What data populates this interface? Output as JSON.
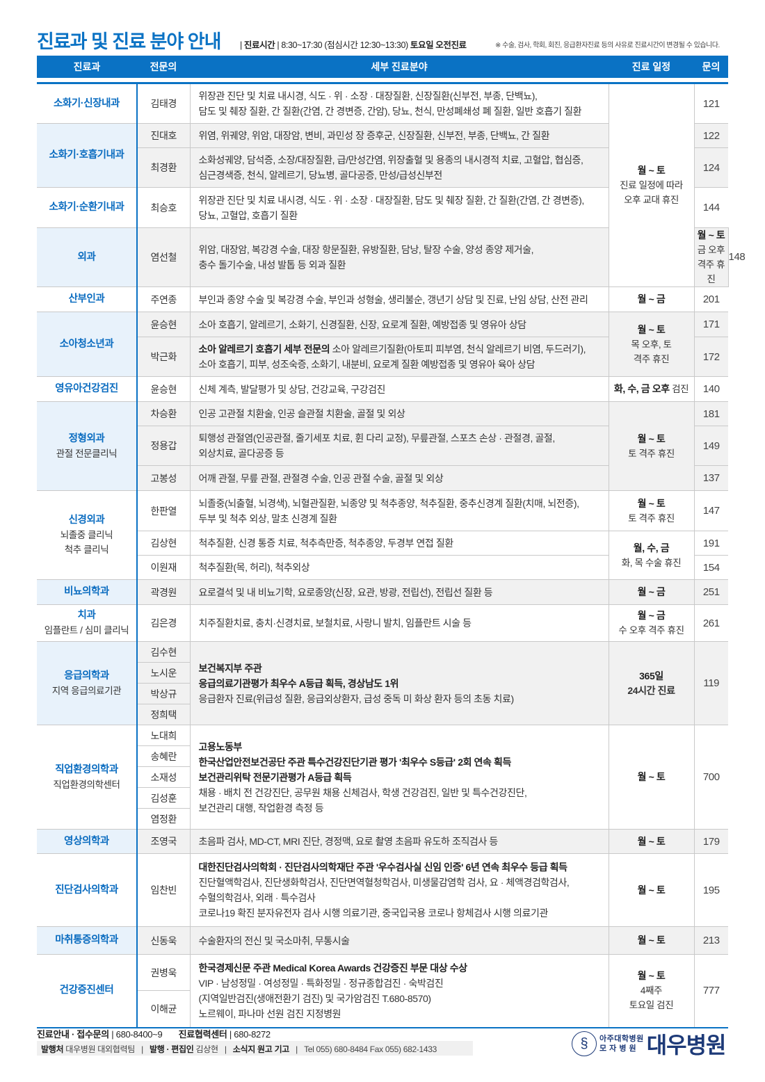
{
  "title": "진료과 및 진료 분야 안내",
  "hours": {
    "label": "진료시간",
    "value": "8:30~17:30",
    "lunch": "(점심시간 12:30~13:30)",
    "sat": "토요일 오전진료"
  },
  "notice": "※ 수술, 검사, 학회, 회진, 응급환자진료 등의 사유로 진료시간이 변경될 수 있습니다.",
  "headers": [
    "진료과",
    "전문의",
    "세부 진료분야",
    "진료 일정",
    "문의"
  ],
  "colors": {
    "accent": "#0a72c4",
    "dept_text": "#0a6cc0",
    "shade": "#f1f1f1",
    "dept_shade": "#e8f2fb"
  },
  "departments": [
    {
      "name": "소화기·신장내과",
      "doctors": [
        "김태경"
      ],
      "details": [
        {
          "lines": [
            "위장관 진단 및 치료 내시경, 식도 · 위 · 소장 · 대장질환, 신장질환(신부전, 부종, 단백뇨),",
            "담도 및 췌장 질환, 간 질환(간염, 간 경변증, 간암), 당뇨, 천식, 만성폐쇄성 폐 질환, 일반 호흡기 질환"
          ]
        }
      ],
      "phones": [
        "121"
      ],
      "schedules": [
        {
          "main": "월 ~ 토",
          "sub": [
            "진료 일정에 따라",
            "오후 교대 휴진"
          ]
        }
      ]
    },
    {
      "name": "소화기·호흡기내과",
      "doctors": [
        "진대호",
        "최경환"
      ],
      "details": [
        {
          "lines": [
            "위염, 위궤양, 위암, 대장암, 변비, 과민성 장 증후군, 신장질환, 신부전, 부종, 단백뇨, 간 질환"
          ]
        },
        {
          "lines": [
            "소화성궤양, 담석증, 소장/대장질환, 급/만성간염, 위장출혈 및 용종의 내시경적 치료, 고혈압, 협심증,",
            "심근경색증, 천식, 알레르기, 당뇨병, 골다공증, 만성/급성신부전"
          ]
        }
      ],
      "phones": [
        "122",
        "124"
      ]
    },
    {
      "name": "소화기·순환기내과",
      "doctors": [
        "최승호"
      ],
      "details": [
        {
          "lines": [
            "위장관 진단 및 치료 내시경, 식도 · 위 · 소장 · 대장질환, 담도 및 췌장 질환, 간 질환(간염, 간 경변증),",
            "당뇨, 고혈압, 호흡기 질환"
          ]
        }
      ],
      "phones": [
        "144"
      ]
    },
    {
      "name": "외과",
      "doctors": [
        "염선철"
      ],
      "details": [
        {
          "lines": [
            "위암, 대장암, 복강경 수술, 대장 항문질환, 유방질환, 담낭, 탈장 수술, 양성 종양 제거술,",
            "충수 돌기수술, 내성 발톱 등 외과 질환"
          ]
        }
      ],
      "phones": [
        "148"
      ],
      "schedules": [
        {
          "main": "월 ~ 토",
          "sub": [
            "금 오후 격주 휴진"
          ]
        }
      ]
    },
    {
      "name": "산부인과",
      "doctors": [
        "주연종"
      ],
      "details": [
        {
          "lines": [
            "부인과 종양 수술 및 복강경 수술, 부인과 성형술, 생리불순, 갱년기 상담 및 진료, 난임 상담, 산전 관리"
          ]
        }
      ],
      "phones": [
        "201"
      ],
      "schedules": [
        {
          "main": "월 ~ 금"
        }
      ]
    },
    {
      "name": "소아청소년과",
      "doctors": [
        "윤승현",
        "박근화"
      ],
      "details": [
        {
          "lines": [
            "소아 호흡기, 알레르기, 소화기, 신경질환, 신장, 요로계 질환, 예방접종 및 영유아 상담"
          ]
        },
        {
          "lead": "소아 알레르기 호흡기 세부 전문의",
          "lines": [
            " 소아 알레르기질환(아토피 피부염, 천식 알레르기 비염, 두드러기),",
            "소아 호흡기, 피부, 성조숙증, 소화기, 내분비, 요로계 질환 예방접종 및 영유아 육아 상담"
          ]
        }
      ],
      "phones": [
        "171",
        "172"
      ],
      "schedules": [
        {
          "main": "월 ~ 토",
          "sub": [
            "목 오후, 토",
            "격주 휴진"
          ]
        }
      ]
    },
    {
      "name": "영유아건강검진",
      "doctors": [
        "윤승현"
      ],
      "details": [
        {
          "lines": [
            "신체 계측, 발달평가 및 상담, 건강교육, 구강검진"
          ]
        }
      ],
      "phones": [
        "140"
      ],
      "schedules": [
        {
          "main": "화, 수, 금 오후",
          "sub": [
            " 검진"
          ]
        }
      ]
    },
    {
      "name": "정형외과",
      "sub": [
        "관절 전문클리닉"
      ],
      "doctors": [
        "차승환",
        "정용갑",
        "고봉성"
      ],
      "details": [
        {
          "lines": [
            "인공 고관절 치환술, 인공 슬관절 치환술, 골절 및 외상"
          ]
        },
        {
          "lines": [
            "퇴행성 관절염(인공관절, 줄기세포 치료, 휜 다리 교정), 무릎관절, 스포츠 손상 · 관절경, 골절,",
            "외상치료, 골다공증 등"
          ]
        },
        {
          "lines": [
            "어깨 관절, 무릎 관절, 관절경 수술, 인공 관절 수술, 골절 및 외상"
          ]
        }
      ],
      "phones": [
        "181",
        "149",
        "137"
      ],
      "schedules": [
        {
          "main": "월 ~ 토",
          "sub": [
            "토 격주 휴진"
          ]
        }
      ]
    },
    {
      "name": "신경외과",
      "sub": [
        "뇌졸중 클리닉",
        "척추 클리닉"
      ],
      "doctors": [
        "한판열",
        "김상현",
        "이원재"
      ],
      "details": [
        {
          "lines": [
            "뇌졸중(뇌출혈, 뇌경색), 뇌혈관질환, 뇌종양 및 척추종양, 척추질환, 중추신경계 질환(치매, 뇌전증),",
            "두부 및 척추 외상, 말초 신경계 질환"
          ]
        },
        {
          "lines": [
            "척추질환, 신경 통증 치료, 척추측만증, 척추종양, 두경부 연접 질환"
          ]
        },
        {
          "lines": [
            "척추질환(목, 허리), 척추외상"
          ]
        }
      ],
      "phones": [
        "147",
        "191",
        "154"
      ],
      "schedules": [
        {
          "main": "월 ~ 토",
          "sub": [
            "토 격주 휴진"
          ]
        },
        {
          "main": "월, 수, 금",
          "sub": [
            "화, 목 수술 휴진"
          ]
        }
      ]
    },
    {
      "name": "비뇨의학과",
      "doctors": [
        "곽경원"
      ],
      "details": [
        {
          "lines": [
            "요로결석 및 내 비뇨기학, 요로종양(신장, 요관, 방광, 전립선), 전립선 질환 등"
          ]
        }
      ],
      "phones": [
        "251"
      ],
      "schedules": [
        {
          "main": "월 ~ 금"
        }
      ]
    },
    {
      "name": "치과",
      "sub": [
        "임플란트 / 심미 클리닉"
      ],
      "doctors": [
        "김은경"
      ],
      "details": [
        {
          "lines": [
            "치주질환치료, 충치·신경치료, 보철치료, 사랑니 발치, 임플란트 시술 등"
          ]
        }
      ],
      "phones": [
        "261"
      ],
      "schedules": [
        {
          "main": "월 ~ 금",
          "sub": [
            "수 오후 격주 휴진"
          ]
        }
      ]
    },
    {
      "name": "응급의학과",
      "sub": [
        "지역 응급의료기관"
      ],
      "doctors": [
        "김수현",
        "노시운",
        "박상규",
        "정희택"
      ],
      "details": [
        {
          "bold": [
            "보건복지부 주관",
            "응급의료기관평가 최우수 A등급 획득, 경상남도 1위"
          ],
          "lines": [
            "응급환자 진료(위급성 질환, 응급외상환자, 급성 중독 미 화상 환자 등의 초동 치료)"
          ]
        }
      ],
      "phones": [
        "119"
      ],
      "schedules": [
        {
          "main": "365일",
          "sub": [
            "24시간 진료"
          ]
        }
      ]
    },
    {
      "name": "직업환경의학과",
      "sub": [
        "직업환경의학센터"
      ],
      "doctors": [
        "노대희",
        "송혜란",
        "소재성",
        "김성훈",
        "염정환"
      ],
      "details": [
        {
          "bold": [
            "고용노동부",
            "한국산업안전보건공단 주관 특수건강진단기관 평가 '최우수 S등급' 2회 연속 획득",
            "보건관리위탁 전문기관평가 A등급 획득"
          ],
          "lines": [
            "채용 · 배치 전 건강진단, 공무원 채용 신체검사, 학생 건강검진, 일반 및 특수건강진단,",
            "보건관리 대행, 작업환경 측정 등"
          ]
        }
      ],
      "phones": [
        "700"
      ],
      "schedules": [
        {
          "main": "월 ~ 토"
        }
      ]
    },
    {
      "name": "영상의학과",
      "doctors": [
        "조영국"
      ],
      "details": [
        {
          "lines": [
            "초음파 검사, MD-CT, MRI 진단, 경정맥, 요로 촬영 초음파 유도하 조직검사 등"
          ]
        }
      ],
      "phones": [
        "179"
      ],
      "schedules": [
        {
          "main": "월 ~ 토"
        }
      ]
    },
    {
      "name": "진단검사의학과",
      "doctors": [
        "임찬빈"
      ],
      "details": [
        {
          "bold": [
            "대한진단검사의학회 · 진단검사의학재단 주관 '우수검사실 신임 인증' 6년 연속 최우수 등급 획득"
          ],
          "lines": [
            "진단혈액학검사, 진단생화학검사, 진단면역혈청학검사, 미생물감염학 검사, 요 · 체액경검학검사,",
            "수혈의학검사, 외래 · 특수검사",
            "코로나19 확진 분자유전자 검사 시행 의료기관, 중국입국용 코로나 항체검사 시행 의료기관"
          ]
        }
      ],
      "phones": [
        "195"
      ],
      "schedules": [
        {
          "main": "월 ~ 토"
        }
      ]
    },
    {
      "name": "마취통증의학과",
      "doctors": [
        "신동욱"
      ],
      "details": [
        {
          "lines": [
            "수술환자의 전신 및 국소마취, 무통시술"
          ]
        }
      ],
      "phones": [
        "213"
      ],
      "schedules": [
        {
          "main": "월 ~ 토"
        }
      ]
    },
    {
      "name": "건강증진센터",
      "doctors": [
        "권병욱",
        "이해균"
      ],
      "details": [
        {
          "bold": [
            "한국경제신문 주관 Medical Korea Awards 건강증진 부문 대상 수상"
          ],
          "lines": [
            "VIP · 남성정밀 · 여성정밀 · 특화정밀 · 정규종합검진 · 숙박검진",
            "(지역일반검진(생애전환기 검진) 및 국가암검진 T.680-8570)",
            "노르웨이, 파나마 선원 검진 지정병원"
          ]
        }
      ],
      "phones": [
        "777"
      ],
      "schedules": [
        {
          "main": "월 ~ 토",
          "sub": [
            "4째주",
            "토요일 검진"
          ]
        }
      ]
    }
  ],
  "footer": {
    "info_label": "진료안내 · 접수문의",
    "info_phone": "680-8400~9",
    "coop_label": "진료협력센터",
    "coop_phone": "680-8272",
    "publisher_label": "발행처",
    "publisher": "대우병원 대외협력팀",
    "editor_label": "발행 · 편집인",
    "editor": "김상현",
    "contribute": "소식지 원고 기고",
    "contact": "Tel 055) 680-8484  Fax 055) 682-1433"
  },
  "logo": {
    "line1": "아주대학병원",
    "line2": "모 자 병 원",
    "name": "대우병원"
  }
}
